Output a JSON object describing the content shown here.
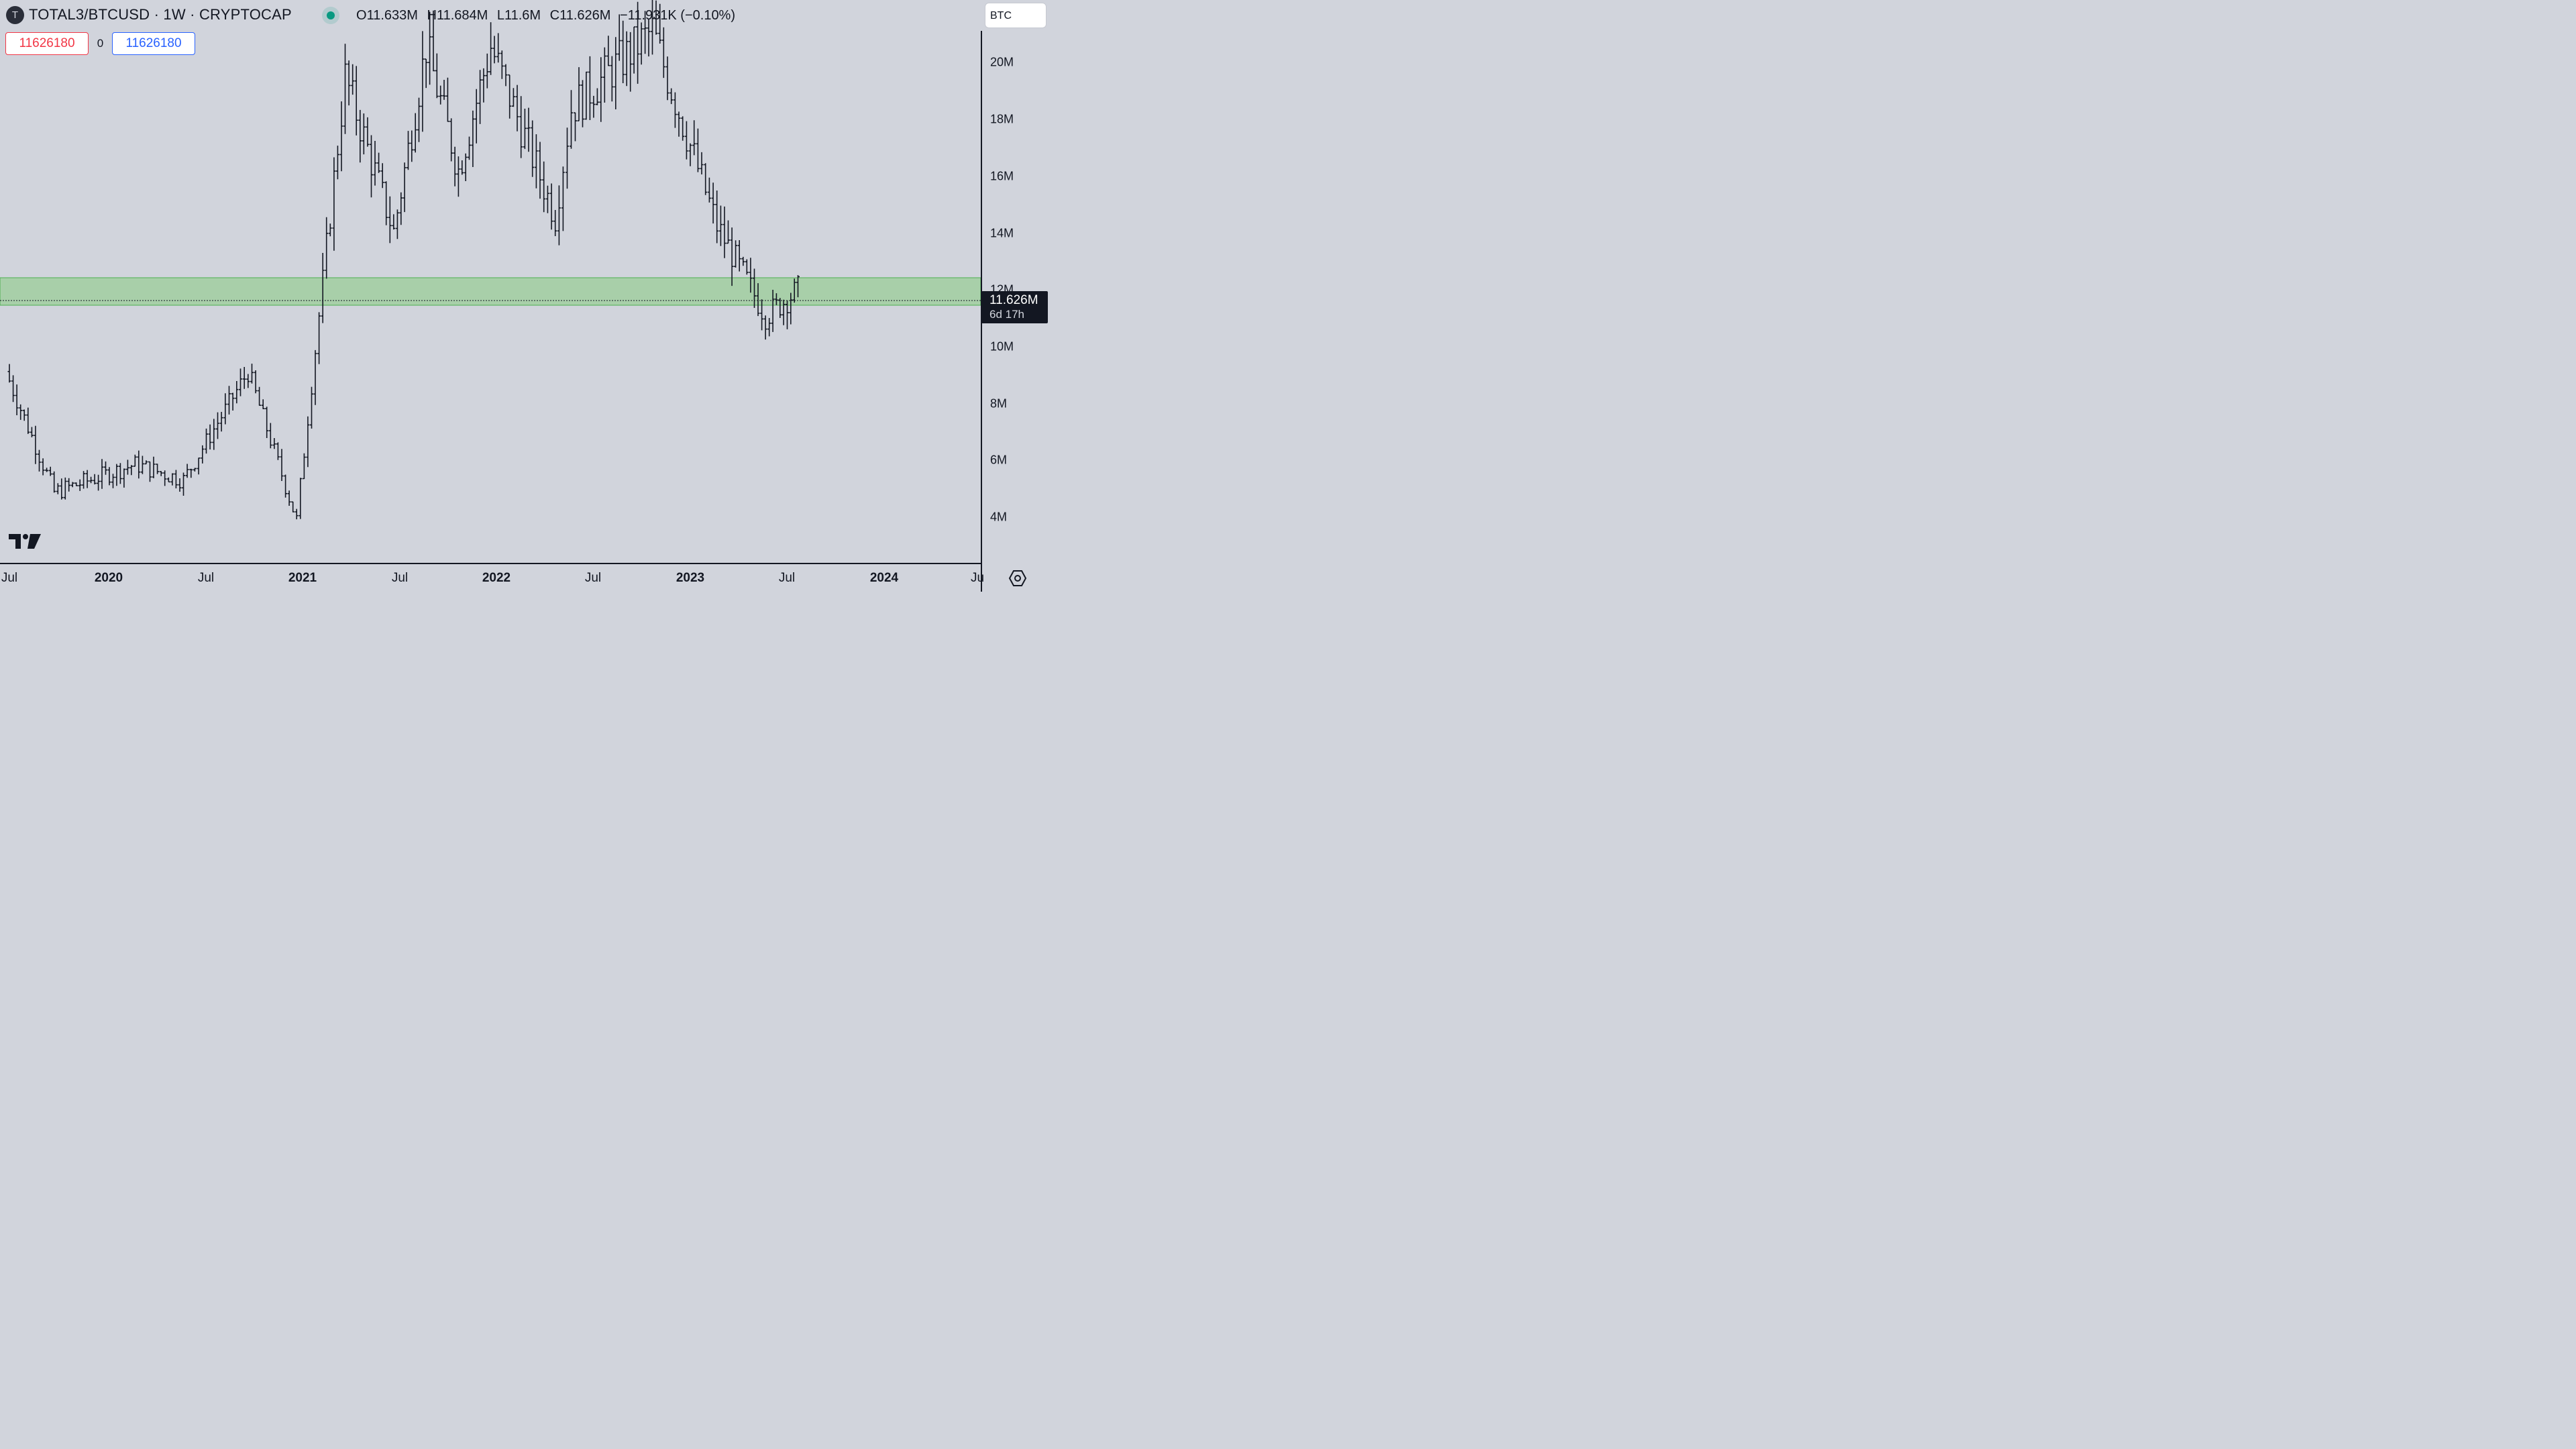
{
  "header": {
    "symbol_title": "TOTAL3/BTCUSD · 1W · CRYPTOCAP",
    "logo_letter": "T",
    "ohlc": {
      "o_label": "O",
      "o": "11.633M",
      "h_label": "H",
      "h": "11.684M",
      "l_label": "L",
      "l": "11.6M",
      "c_label": "C",
      "c": "11.626M",
      "change": "−11.931K (−0.10%)"
    },
    "currency": "BTC"
  },
  "trade": {
    "sell": "11626180",
    "spread": "0",
    "buy": "11626180"
  },
  "price_tag": {
    "price": "11.626M",
    "countdown": "6d 17h"
  },
  "y_ticks": [
    "20M",
    "18M",
    "16M",
    "14M",
    "12M",
    "10M",
    "8M",
    "6M",
    "4M"
  ],
  "x_ticks": [
    {
      "label": "Jul",
      "year": false
    },
    {
      "label": "2020",
      "year": true
    },
    {
      "label": "Jul",
      "year": false
    },
    {
      "label": "2021",
      "year": true
    },
    {
      "label": "Jul",
      "year": false
    },
    {
      "label": "2022",
      "year": true
    },
    {
      "label": "Jul",
      "year": false
    },
    {
      "label": "2023",
      "year": true
    },
    {
      "label": "Jul",
      "year": false
    },
    {
      "label": "2024",
      "year": true
    },
    {
      "label": "Ju",
      "year": false
    }
  ],
  "colors": {
    "background": "#d1d4dc",
    "zone_fill": "#a8cfa9",
    "zone_border": "#4caf50",
    "bars": "#131722"
  },
  "chart_data": {
    "type": "ohlc_bar",
    "interval": "1W",
    "y_unit": "M",
    "ylim": [
      2.8,
      21
    ],
    "support_zone": [
      11.5,
      12.45
    ],
    "last_price": 11.626,
    "key_points": [
      {
        "x": "2019-07",
        "y": 9.0
      },
      {
        "x": "2019-10",
        "y": 5.1
      },
      {
        "x": "2020-03",
        "y": 6.0
      },
      {
        "x": "2020-06",
        "y": 5.5
      },
      {
        "x": "2020-10",
        "y": 9.0
      },
      {
        "x": "2021-01",
        "y": 4.2
      },
      {
        "x": "2021-04",
        "y": 18.5
      },
      {
        "x": "2021-07",
        "y": 13.5
      },
      {
        "x": "2021-09",
        "y": 19.5
      },
      {
        "x": "2021-11",
        "y": 15.5
      },
      {
        "x": "2022-01",
        "y": 19.5
      },
      {
        "x": "2022-05",
        "y": 14.0
      },
      {
        "x": "2022-06",
        "y": 17.5
      },
      {
        "x": "2022-11",
        "y": 20.0
      },
      {
        "x": "2023-03",
        "y": 13.7
      },
      {
        "x": "2023-06",
        "y": 10.8
      },
      {
        "x": "2023-08",
        "y": 11.626
      }
    ]
  }
}
